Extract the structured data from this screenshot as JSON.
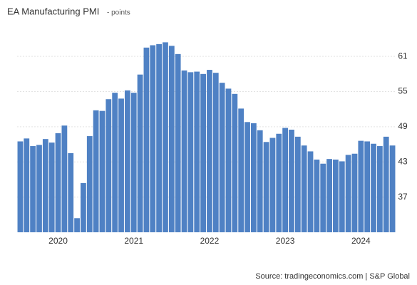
{
  "chart_data": {
    "type": "bar",
    "title": "EA Manufacturing PMI",
    "subtitle": "- points",
    "source": "Source: tradingeconomics.com | S&P Global",
    "color": "#4f81c4",
    "categories": [
      null,
      null,
      null,
      null,
      null,
      null,
      "2020",
      null,
      null,
      null,
      null,
      null,
      null,
      null,
      null,
      null,
      null,
      null,
      "2021",
      null,
      null,
      null,
      null,
      null,
      null,
      null,
      null,
      null,
      null,
      null,
      "2022",
      null,
      null,
      null,
      null,
      null,
      null,
      null,
      null,
      null,
      null,
      null,
      "2023",
      null,
      null,
      null,
      null,
      null,
      null,
      null,
      null,
      null,
      null,
      null,
      "2024",
      null,
      null,
      null,
      null,
      null
    ],
    "values": [
      46.5,
      47.0,
      45.7,
      45.9,
      46.9,
      46.3,
      47.9,
      49.2,
      44.5,
      33.4,
      39.4,
      47.4,
      51.8,
      51.7,
      53.7,
      54.8,
      53.8,
      55.2,
      54.8,
      57.9,
      62.5,
      62.9,
      63.1,
      63.4,
      62.8,
      61.4,
      58.6,
      58.3,
      58.4,
      58.0,
      58.7,
      58.2,
      56.5,
      55.5,
      54.6,
      52.1,
      49.8,
      49.6,
      48.4,
      46.4,
      47.1,
      47.8,
      48.8,
      48.5,
      47.3,
      45.8,
      44.8,
      43.4,
      42.7,
      43.5,
      43.4,
      43.1,
      44.2,
      44.4,
      46.6,
      46.5,
      46.1,
      45.7,
      47.3,
      45.8
    ],
    "ylim": [
      31,
      66
    ],
    "yticks": [
      37,
      43,
      49,
      55,
      61
    ],
    "grid": true
  }
}
